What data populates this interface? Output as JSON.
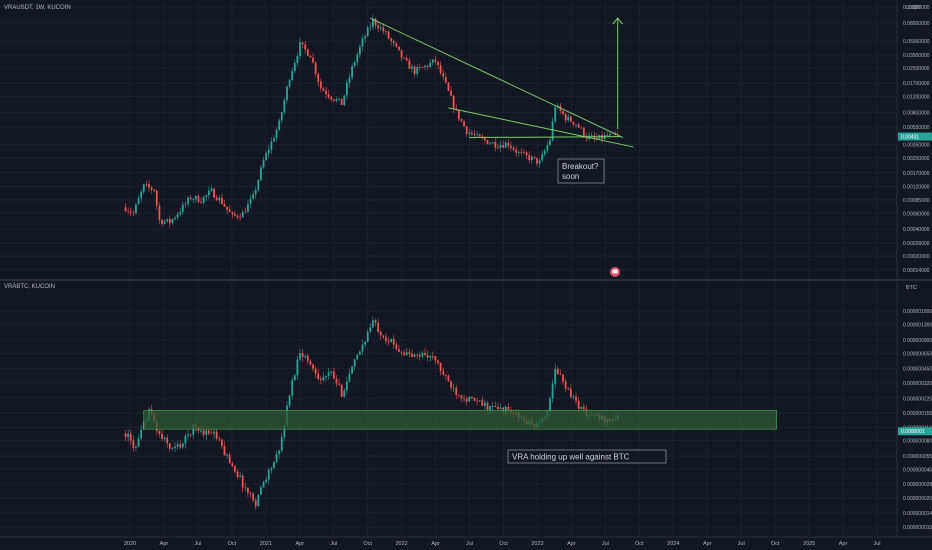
{
  "top_pane": {
    "symbol_line": "VRAUSDT, 1W, KUCOIN",
    "currency": "USDT",
    "price_tag": "0.00431"
  },
  "bottom_pane": {
    "symbol_line": "VRABTC, KUCOIN",
    "currency": "BTC",
    "price_tag": "0.0000001"
  },
  "annotations": {
    "breakout_line1": "Breakout?",
    "breakout_line2": "soon",
    "vra_holding": "VRA holding up well against BTC"
  },
  "icons": {
    "arrow": "up-arrow-icon",
    "alert": "alert-icon"
  },
  "colors": {
    "background": "#131722",
    "grid": "#1e222d",
    "up": "#26a69a",
    "down": "#ef5350",
    "trendline": "#7bcf6a",
    "support_fill": "#2e5a37"
  },
  "chart_data": [
    {
      "type": "candlestick",
      "title": "VRAUSDT, 1W, KUCOIN",
      "ylabel": "USDT",
      "y_scale": "log",
      "y_ticks": [
        "0.12000000",
        "0.08000000",
        "0.05000000",
        "0.03500000",
        "0.02500000",
        "0.01700000",
        "0.01200000",
        "0.00800000",
        "0.00550000",
        "0.00350000",
        "0.00250000",
        "0.00170000",
        "0.00120000",
        "0.00085000",
        "0.00060000",
        "0.00040000",
        "0.00028000",
        "0.00020000",
        "0.00014000"
      ],
      "x_ticks": [
        "2020",
        "Apr",
        "Jul",
        "Oct",
        "2021",
        "Apr",
        "Jul",
        "Oct",
        "2022",
        "Apr",
        "Jul",
        "Oct",
        "2023",
        "Apr",
        "Jul",
        "Oct",
        "2024",
        "Apr",
        "Jul",
        "Oct",
        "2025",
        "Apr",
        "Jul"
      ],
      "close_path": [
        [
          "2019-12-20",
          0.0007
        ],
        [
          "2020-01-10",
          0.0006
        ],
        [
          "2020-02-07",
          0.0012
        ],
        [
          "2020-03-06",
          0.0011
        ],
        [
          "2020-03-20",
          0.0005
        ],
        [
          "2020-04-17",
          0.00048
        ],
        [
          "2020-05-15",
          0.00065
        ],
        [
          "2020-06-12",
          0.0009
        ],
        [
          "2020-07-10",
          0.00085
        ],
        [
          "2020-08-07",
          0.00105
        ],
        [
          "2020-09-04",
          0.0008
        ],
        [
          "2020-10-02",
          0.00055
        ],
        [
          "2020-10-30",
          0.0006
        ],
        [
          "2020-11-27",
          0.0009
        ],
        [
          "2020-12-25",
          0.0023
        ],
        [
          "2021-02-05",
          0.006
        ],
        [
          "2021-03-05",
          0.02
        ],
        [
          "2021-04-02",
          0.045
        ],
        [
          "2021-04-30",
          0.035
        ],
        [
          "2021-05-28",
          0.015
        ],
        [
          "2021-06-25",
          0.012
        ],
        [
          "2021-07-23",
          0.01
        ],
        [
          "2021-08-20",
          0.025
        ],
        [
          "2021-09-17",
          0.05
        ],
        [
          "2021-10-15",
          0.085
        ],
        [
          "2021-11-12",
          0.065
        ],
        [
          "2021-12-10",
          0.045
        ],
        [
          "2022-01-07",
          0.03
        ],
        [
          "2022-02-04",
          0.023
        ],
        [
          "2022-03-04",
          0.026
        ],
        [
          "2022-04-01",
          0.03
        ],
        [
          "2022-04-29",
          0.016
        ],
        [
          "2022-05-27",
          0.008
        ],
        [
          "2022-06-24",
          0.005
        ],
        [
          "2022-07-22",
          0.0042
        ],
        [
          "2022-08-19",
          0.0038
        ],
        [
          "2022-09-16",
          0.0035
        ],
        [
          "2022-10-14",
          0.0036
        ],
        [
          "2022-11-11",
          0.0028
        ],
        [
          "2022-12-09",
          0.0025
        ],
        [
          "2023-01-06",
          0.0022
        ],
        [
          "2023-02-03",
          0.004
        ],
        [
          "2023-02-17",
          0.0095
        ],
        [
          "2023-03-17",
          0.007
        ],
        [
          "2023-04-14",
          0.006
        ],
        [
          "2023-05-12",
          0.0043
        ],
        [
          "2023-06-09",
          0.004
        ],
        [
          "2023-07-07",
          0.0044
        ],
        [
          "2023-08-04",
          0.00431
        ]
      ],
      "trendlines": [
        {
          "from": [
            "2021-10-08",
            0.09
          ],
          "to": [
            "2023-08-18",
            0.0042
          ]
        },
        {
          "from": [
            "2022-05-06",
            0.009
          ],
          "to": [
            "2023-09-15",
            0.0033
          ]
        },
        {
          "from": [
            "2022-07-01",
            0.0042
          ],
          "to": [
            "2023-08-11",
            0.0043
          ]
        }
      ],
      "target_arrow": {
        "date": "2023-08-04",
        "from": 0.0052,
        "to": 0.09
      }
    },
    {
      "type": "candlestick",
      "title": "VRABTC, KUCOIN",
      "ylabel": "BTC",
      "y_scale": "log",
      "y_ticks": [
        "0.0000018000",
        "0.0000013000",
        "0.0000009000",
        "0.0000006500",
        "0.0000004500",
        "0.0000003200",
        "0.0000002200",
        "0.0000001550",
        "0.0000001100",
        "0.0000000800",
        "0.0000000550",
        "0.0000000400",
        "0.0000000280",
        "0.0000000200",
        "0.0000000140",
        "0.0000000100"
      ],
      "x_ticks": [
        "2020",
        "Apr",
        "Jul",
        "Oct",
        "2021",
        "Apr",
        "Jul",
        "Oct",
        "2022",
        "Apr",
        "Jul",
        "Oct",
        "2023",
        "Apr",
        "Jul",
        "Oct",
        "2024",
        "Apr",
        "Jul",
        "Oct",
        "2025",
        "Apr",
        "Jul"
      ],
      "close_path": [
        [
          "2019-12-20",
          9.5e-08
        ],
        [
          "2020-01-17",
          6.5e-08
        ],
        [
          "2020-02-21",
          1.7e-07
        ],
        [
          "2020-03-20",
          9e-08
        ],
        [
          "2020-04-24",
          6.5e-08
        ],
        [
          "2020-05-22",
          7.5e-08
        ],
        [
          "2020-06-19",
          1.1e-07
        ],
        [
          "2020-07-17",
          1e-07
        ],
        [
          "2020-08-14",
          9.5e-08
        ],
        [
          "2020-09-11",
          6e-08
        ],
        [
          "2020-10-09",
          4e-08
        ],
        [
          "2020-11-06",
          2.5e-08
        ],
        [
          "2020-12-04",
          1.8e-08
        ],
        [
          "2020-12-25",
          3e-08
        ],
        [
          "2021-02-05",
          6e-08
        ],
        [
          "2021-03-05",
          2.5e-07
        ],
        [
          "2021-04-02",
          7e-07
        ],
        [
          "2021-04-30",
          5e-07
        ],
        [
          "2021-05-28",
          3.5e-07
        ],
        [
          "2021-06-25",
          4e-07
        ],
        [
          "2021-07-23",
          2.5e-07
        ],
        [
          "2021-08-20",
          4.5e-07
        ],
        [
          "2021-09-17",
          8e-07
        ],
        [
          "2021-10-15",
          1.4e-06
        ],
        [
          "2021-11-12",
          1e-06
        ],
        [
          "2021-12-10",
          8e-07
        ],
        [
          "2022-01-07",
          6.5e-07
        ],
        [
          "2022-02-04",
          6e-07
        ],
        [
          "2022-03-04",
          6.5e-07
        ],
        [
          "2022-04-01",
          5.5e-07
        ],
        [
          "2022-04-29",
          3.5e-07
        ],
        [
          "2022-05-27",
          2.6e-07
        ],
        [
          "2022-06-24",
          2.2e-07
        ],
        [
          "2022-07-22",
          2e-07
        ],
        [
          "2022-08-19",
          1.8e-07
        ],
        [
          "2022-09-16",
          1.7e-07
        ],
        [
          "2022-10-14",
          1.65e-07
        ],
        [
          "2022-11-11",
          1.4e-07
        ],
        [
          "2022-12-09",
          1.2e-07
        ],
        [
          "2023-01-06",
          1.15e-07
        ],
        [
          "2023-02-03",
          2e-07
        ],
        [
          "2023-02-17",
          4.5e-07
        ],
        [
          "2023-03-17",
          3e-07
        ],
        [
          "2023-04-14",
          2e-07
        ],
        [
          "2023-05-12",
          1.5e-07
        ],
        [
          "2023-06-09",
          1.4e-07
        ],
        [
          "2023-07-07",
          1.3e-07
        ],
        [
          "2023-08-04",
          1.38e-07
        ]
      ],
      "support_zone": {
        "from_date": "2020-02-07",
        "to_date": "2024-10-04",
        "low": 1.05e-07,
        "high": 1.65e-07
      }
    }
  ]
}
